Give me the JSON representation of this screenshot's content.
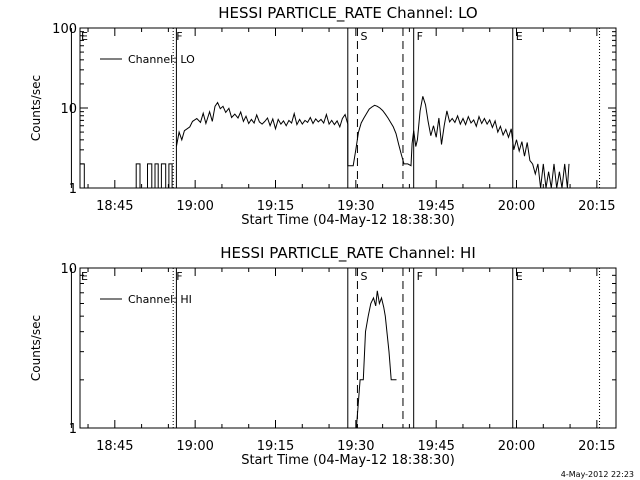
{
  "chart_data": [
    {
      "type": "line",
      "title": "HESSI PARTICLE_RATE Channel: LO",
      "xlabel": "Start Time (04-May-12 18:38:30)",
      "ylabel": "Counts/sec",
      "yscale": "log",
      "ylim": [
        1,
        100
      ],
      "yticks": [
        {
          "v": 1,
          "label": "1"
        },
        {
          "v": 10,
          "label": "10"
        },
        {
          "v": 100,
          "label": "100"
        }
      ],
      "xlim_min_after_1838": [
        0,
        100
      ],
      "xticks": [
        {
          "min": 6.5,
          "label": "18:45"
        },
        {
          "min": 21.5,
          "label": "19:00"
        },
        {
          "min": 36.5,
          "label": "19:15"
        },
        {
          "min": 51.5,
          "label": "19:30"
        },
        {
          "min": 66.5,
          "label": "19:45"
        },
        {
          "min": 81.5,
          "label": "20:00"
        },
        {
          "min": 96.5,
          "label": "20:15"
        }
      ],
      "legend": {
        "label": "Channel: LO",
        "position": "top-left"
      },
      "markers": [
        {
          "min": -1.6,
          "label": "E",
          "style": "solid"
        },
        {
          "min": 17.4,
          "label": "F",
          "style": "dotted"
        },
        {
          "min": 18.0,
          "label": "",
          "style": "solid"
        },
        {
          "min": 50.0,
          "label": "",
          "style": "solid"
        },
        {
          "min": 51.8,
          "label": "S",
          "style": "dashed"
        },
        {
          "min": 60.3,
          "label": "",
          "style": "dashed"
        },
        {
          "min": 62.3,
          "label": "F",
          "style": "solid"
        },
        {
          "min": 80.8,
          "label": "E",
          "style": "solid"
        },
        {
          "min": 97.0,
          "label": "",
          "style": "dotted"
        }
      ],
      "series": [
        {
          "name": "Channel: LO",
          "segments": [
            [
              [
                0,
                2
              ],
              [
                0.8,
                2
              ],
              [
                0.8,
                1
              ],
              [
                1.6,
                1
              ]
            ],
            [
              [
                10.5,
                1
              ],
              [
                10.5,
                2
              ],
              [
                11.2,
                2
              ],
              [
                11.2,
                1
              ]
            ],
            [
              [
                12.6,
                1
              ],
              [
                12.6,
                2
              ],
              [
                13.4,
                2
              ],
              [
                13.4,
                1
              ],
              [
                14.0,
                1
              ],
              [
                14.0,
                2
              ],
              [
                14.6,
                2
              ],
              [
                14.6,
                1
              ],
              [
                15.2,
                1
              ],
              [
                15.2,
                2
              ],
              [
                16.0,
                2
              ],
              [
                16.0,
                1
              ],
              [
                16.6,
                1
              ],
              [
                16.6,
                2
              ],
              [
                17.2,
                2
              ],
              [
                17.2,
                1
              ]
            ],
            [
              [
                18.0,
                3.3
              ],
              [
                18.5,
                5.0
              ],
              [
                19.0,
                4.0
              ],
              [
                19.5,
                5.2
              ],
              [
                20.5,
                5.8
              ],
              [
                21.0,
                6.8
              ],
              [
                21.8,
                7.4
              ],
              [
                22.5,
                6.6
              ],
              [
                23.0,
                8.6
              ],
              [
                23.5,
                6.4
              ],
              [
                24.2,
                9.0
              ],
              [
                24.7,
                6.8
              ],
              [
                25.2,
                10.5
              ],
              [
                25.7,
                11.7
              ],
              [
                26.2,
                9.8
              ],
              [
                26.7,
                10.5
              ],
              [
                27.2,
                8.8
              ],
              [
                27.8,
                9.9
              ],
              [
                28.3,
                7.6
              ],
              [
                28.9,
                8.4
              ],
              [
                29.5,
                7.5
              ],
              [
                30.0,
                8.9
              ],
              [
                30.5,
                6.8
              ],
              [
                31.0,
                7.9
              ],
              [
                31.5,
                6.4
              ],
              [
                32.0,
                7.2
              ],
              [
                32.5,
                6.5
              ],
              [
                33.0,
                8.2
              ],
              [
                33.5,
                6.7
              ],
              [
                34.0,
                6.3
              ],
              [
                34.5,
                6.8
              ],
              [
                35.0,
                7.5
              ],
              [
                35.5,
                6.0
              ],
              [
                36.0,
                7.3
              ],
              [
                36.5,
                5.5
              ],
              [
                37.0,
                7.2
              ],
              [
                37.5,
                6.3
              ],
              [
                38.0,
                6.9
              ],
              [
                38.5,
                6.0
              ],
              [
                39.0,
                7.0
              ],
              [
                39.5,
                6.5
              ],
              [
                40.0,
                8.5
              ],
              [
                40.5,
                6.2
              ],
              [
                41.0,
                7.2
              ],
              [
                41.5,
                6.3
              ],
              [
                42.0,
                7.0
              ],
              [
                42.5,
                6.6
              ],
              [
                43.0,
                7.6
              ],
              [
                43.5,
                6.4
              ],
              [
                44.0,
                7.3
              ],
              [
                44.5,
                6.7
              ],
              [
                45.0,
                7.2
              ],
              [
                45.5,
                6.5
              ],
              [
                46.0,
                8.3
              ],
              [
                46.5,
                6.3
              ],
              [
                47.0,
                7.0
              ],
              [
                47.5,
                6.2
              ],
              [
                48.0,
                6.9
              ],
              [
                48.5,
                5.8
              ],
              [
                49.0,
                7.4
              ],
              [
                49.5,
                8.3
              ],
              [
                50.0,
                6.3
              ],
              [
                50.0,
                1.9
              ],
              [
                50.6,
                1.9
              ],
              [
                51.0,
                1.9
              ],
              [
                51.5,
                3.0
              ],
              [
                52.0,
                5.0
              ],
              [
                52.5,
                6.5
              ],
              [
                53.0,
                7.5
              ],
              [
                53.5,
                8.5
              ],
              [
                54.0,
                9.7
              ],
              [
                54.5,
                10.3
              ],
              [
                55.0,
                10.8
              ],
              [
                55.5,
                10.5
              ],
              [
                56.0,
                10.0
              ],
              [
                56.5,
                9.3
              ],
              [
                57.0,
                8.4
              ],
              [
                57.5,
                7.5
              ],
              [
                58.0,
                6.6
              ],
              [
                58.5,
                5.8
              ],
              [
                59.0,
                4.8
              ],
              [
                59.5,
                3.5
              ],
              [
                60.0,
                2.6
              ],
              [
                60.5,
                2.0
              ],
              [
                61.2,
                2.0
              ],
              [
                61.8,
                1.9
              ],
              [
                62.0,
                3.6
              ],
              [
                62.3,
                5.2
              ],
              [
                62.7,
                3.3
              ],
              [
                63.0,
                4.0
              ],
              [
                63.5,
                9.2
              ],
              [
                64.0,
                14.0
              ],
              [
                64.5,
                11.0
              ],
              [
                65.0,
                6.8
              ],
              [
                65.5,
                4.5
              ],
              [
                66.0,
                6.0
              ],
              [
                66.5,
                4.3
              ],
              [
                67.0,
                7.5
              ],
              [
                67.5,
                3.5
              ],
              [
                68.0,
                6.0
              ],
              [
                68.5,
                9.2
              ],
              [
                69.0,
                6.7
              ],
              [
                69.5,
                7.4
              ],
              [
                70.0,
                6.6
              ],
              [
                70.5,
                8.0
              ],
              [
                71.0,
                6.3
              ],
              [
                71.5,
                7.4
              ],
              [
                72.0,
                6.2
              ],
              [
                72.5,
                7.8
              ],
              [
                73.0,
                6.5
              ],
              [
                73.5,
                7.1
              ],
              [
                74.0,
                5.9
              ],
              [
                74.5,
                7.8
              ],
              [
                75.0,
                6.4
              ],
              [
                75.5,
                7.4
              ],
              [
                76.0,
                6.3
              ],
              [
                76.5,
                7.1
              ],
              [
                77.0,
                5.7
              ],
              [
                77.5,
                6.9
              ],
              [
                78.0,
                5.0
              ],
              [
                78.5,
                5.9
              ],
              [
                79.0,
                4.6
              ],
              [
                79.5,
                5.4
              ],
              [
                80.0,
                4.3
              ],
              [
                80.5,
                5.5
              ],
              [
                81.0,
                3.0
              ],
              [
                81.5,
                4.0
              ],
              [
                82.0,
                2.9
              ],
              [
                82.5,
                3.8
              ],
              [
                83.0,
                2.5
              ],
              [
                83.5,
                3.7
              ],
              [
                84.0,
                2.2
              ],
              [
                84.5,
                2.0
              ]
            ],
            [
              [
                84.5,
                2.0
              ],
              [
                85.0,
                1.5
              ],
              [
                85.5,
                2.0
              ],
              [
                86.0,
                1.0
              ],
              [
                86.5,
                2.0
              ],
              [
                87.0,
                1.0
              ],
              [
                87.5,
                1.6
              ],
              [
                88.0,
                1.0
              ],
              [
                88.5,
                2.0
              ],
              [
                89.0,
                1.0
              ],
              [
                89.5,
                1.6
              ],
              [
                90.0,
                1.0
              ],
              [
                90.5,
                2.0
              ],
              [
                91.0,
                1.0
              ],
              [
                91.3,
                2.0
              ]
            ]
          ]
        }
      ]
    },
    {
      "type": "line",
      "title": "HESSI PARTICLE_RATE Channel: HI",
      "xlabel": "Start Time (04-May-12 18:38:30)",
      "ylabel": "Counts/sec",
      "yscale": "log",
      "ylim": [
        1,
        10
      ],
      "yticks": [
        {
          "v": 1,
          "label": "1"
        },
        {
          "v": 10,
          "label": "10"
        }
      ],
      "xlim_min_after_1838": [
        0,
        100
      ],
      "xticks": [
        {
          "min": 6.5,
          "label": "18:45"
        },
        {
          "min": 21.5,
          "label": "19:00"
        },
        {
          "min": 36.5,
          "label": "19:15"
        },
        {
          "min": 51.5,
          "label": "19:30"
        },
        {
          "min": 66.5,
          "label": "19:45"
        },
        {
          "min": 81.5,
          "label": "20:00"
        },
        {
          "min": 96.5,
          "label": "20:15"
        }
      ],
      "legend": {
        "label": "Channel: HI",
        "position": "top-left"
      },
      "markers": [
        {
          "min": -1.6,
          "label": "E",
          "style": "solid"
        },
        {
          "min": 17.4,
          "label": "F",
          "style": "dotted"
        },
        {
          "min": 18.0,
          "label": "",
          "style": "solid"
        },
        {
          "min": 50.0,
          "label": "",
          "style": "solid"
        },
        {
          "min": 51.8,
          "label": "S",
          "style": "dashed"
        },
        {
          "min": 60.3,
          "label": "",
          "style": "dashed"
        },
        {
          "min": 62.3,
          "label": "F",
          "style": "solid"
        },
        {
          "min": 80.8,
          "label": "E",
          "style": "solid"
        },
        {
          "min": 97.0,
          "label": "",
          "style": "dotted"
        }
      ],
      "series": [
        {
          "name": "Channel: HI",
          "segments": [
            [
              [
                51.6,
                1.0
              ],
              [
                52.3,
                2.0
              ],
              [
                52.9,
                2.0
              ],
              [
                53.3,
                4.0
              ],
              [
                53.8,
                5.0
              ],
              [
                54.3,
                6.0
              ],
              [
                54.8,
                6.5
              ],
              [
                55.2,
                5.8
              ],
              [
                55.5,
                7.2
              ],
              [
                55.9,
                6.0
              ],
              [
                56.3,
                6.5
              ],
              [
                56.7,
                5.7
              ],
              [
                57.0,
                5.0
              ],
              [
                57.3,
                4.0
              ],
              [
                57.7,
                3.0
              ],
              [
                58.1,
                2.0
              ],
              [
                59.1,
                2.0
              ]
            ]
          ]
        }
      ]
    }
  ],
  "footer": {
    "timestamp": "4-May-2012 22:23"
  }
}
